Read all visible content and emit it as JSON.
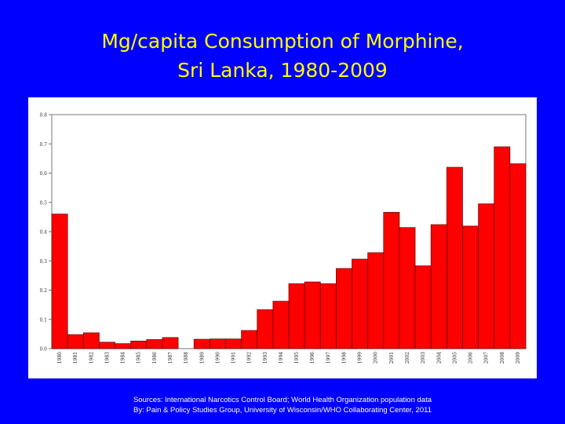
{
  "slide": {
    "title_line1": "Mg/capita Consumption of Morphine,",
    "title_line2": "Sri Lanka, 1980-2009",
    "sources_line1": "Sources: International Narcotics Control Board; World Health Organization population data",
    "sources_line2": "By: Pain & Policy Studies Group, University of Wisconsin/WHO Collaborating Center, 2011",
    "background_color": "#0000ff",
    "title_color": "#ffff00"
  },
  "chart_data": {
    "type": "bar",
    "title": "",
    "xlabel": "",
    "ylabel": "",
    "ylim": [
      0,
      0.8
    ],
    "yticks": [
      "0.0",
      "0.1",
      "0.2",
      "0.3",
      "0.4",
      "0.5",
      "0.6",
      "0.7",
      "0.8"
    ],
    "grid": false,
    "bar_color": "#ff0000",
    "categories": [
      "1980",
      "1981",
      "1982",
      "1983",
      "1984",
      "1985",
      "1986",
      "1987",
      "1988",
      "1989",
      "1990",
      "1991",
      "1992",
      "1993",
      "1994",
      "1995",
      "1996",
      "1997",
      "1998",
      "1999",
      "2000",
      "2001",
      "2002",
      "2003",
      "2004",
      "2005",
      "2006",
      "2007",
      "2008",
      "2009"
    ],
    "values": [
      0.46,
      0.048,
      0.054,
      0.022,
      0.017,
      0.026,
      0.031,
      0.038,
      0.0,
      0.032,
      0.033,
      0.033,
      0.062,
      0.133,
      0.162,
      0.222,
      0.228,
      0.222,
      0.274,
      0.306,
      0.328,
      0.466,
      0.414,
      0.283,
      0.424,
      0.62,
      0.419,
      0.495,
      0.69,
      0.632
    ]
  }
}
